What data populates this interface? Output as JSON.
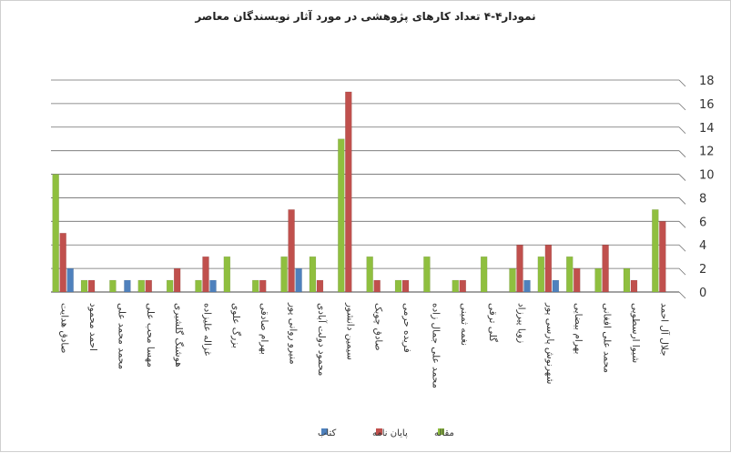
{
  "chart_data": {
    "type": "bar",
    "title": "نمودار۴-۴ تعداد کارهای پژوهشی در مورد آثار نویسندگان معاصر",
    "xlabel": "",
    "ylabel": "",
    "ylim": [
      0,
      18
    ],
    "y_ticks": [
      0,
      2,
      4,
      6,
      8,
      10,
      12,
      14,
      16,
      18
    ],
    "grid": true,
    "legend_position": "bottom",
    "categories": [
      "صادق هدایت",
      "احمد محمود",
      "محمد محمد علی",
      "مهسا محب علی",
      "هوشنگ گلشیری",
      "غزاله علیزاده",
      "بزرگ علوی",
      "بهرام صادقی",
      "منیرو روانی پور",
      "محمود دولت آبادی",
      "سیمین دانشور",
      "صادق چوبک",
      "فریده حرمی",
      "محمد علی جمال زاده",
      "نغمه ثمینی",
      "گلی ترقی",
      "زویا پیرزاد",
      "شهرنوش پارسی پور",
      "بهرام بیضایی",
      "محمد علی افغانی",
      "شیوا ارسطویی",
      "جلال آل احمد"
    ],
    "series": [
      {
        "name": "مقاله",
        "color": "#8fbf3f",
        "values": [
          10,
          1,
          1,
          1,
          1,
          1,
          3,
          1,
          3,
          3,
          13,
          3,
          1,
          3,
          1,
          3,
          2,
          3,
          3,
          2,
          2,
          7
        ]
      },
      {
        "name": "پایان نامه",
        "color": "#c0504d",
        "values": [
          5,
          1,
          0,
          1,
          2,
          3,
          0,
          1,
          7,
          1,
          17,
          1,
          1,
          0,
          1,
          0,
          4,
          4,
          2,
          4,
          1,
          6
        ]
      },
      {
        "name": "کتاب",
        "color": "#4f81bd",
        "values": [
          2,
          0,
          1,
          0,
          0,
          1,
          0,
          0,
          2,
          0,
          0,
          0,
          0,
          0,
          0,
          0,
          1,
          1,
          0,
          0,
          0,
          0
        ]
      }
    ]
  }
}
